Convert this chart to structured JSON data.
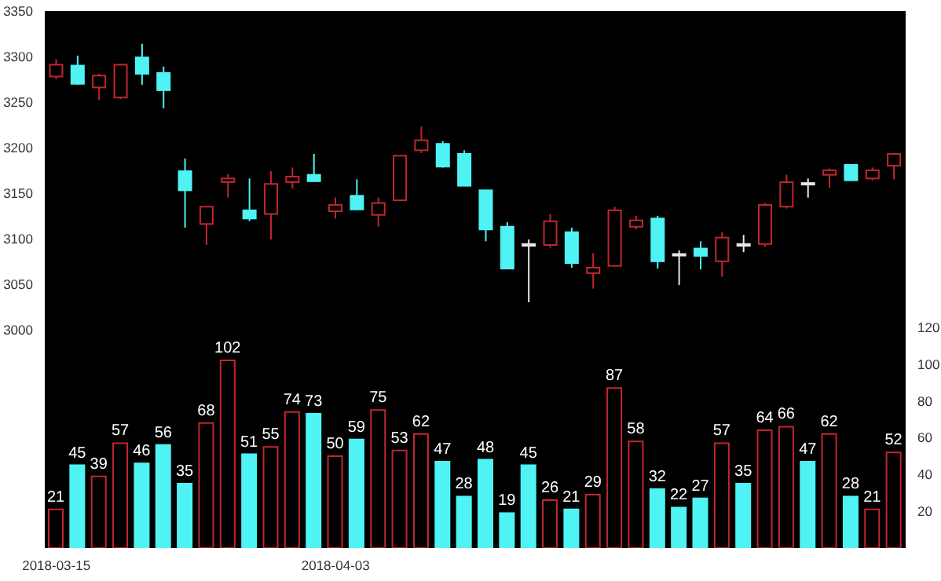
{
  "chart_data": {
    "type": "candlestick",
    "categories": [
      "2018-03-15",
      null,
      null,
      null,
      null,
      null,
      null,
      null,
      null,
      null,
      null,
      null,
      null,
      "2018-04-03",
      null,
      null,
      null,
      null,
      null,
      null,
      null,
      null,
      null,
      null,
      null,
      null,
      null,
      null,
      null,
      null,
      null,
      null,
      null,
      null,
      null,
      null,
      null,
      null,
      null,
      null
    ],
    "ylim": [
      2760,
      3350
    ],
    "yticks": [
      3000,
      3050,
      3100,
      3150,
      3200,
      3250,
      3300,
      3350
    ],
    "y2lim": [
      0,
      292
    ],
    "y2ticks": [
      20,
      40,
      60,
      80,
      100,
      120
    ],
    "data_labels": true,
    "series": [
      {
        "ohlc": [
          [
            3278,
            3297,
            3275,
            3291
          ],
          [
            3290,
            3301,
            3269,
            3270
          ],
          [
            3266,
            3281,
            3252,
            3279
          ],
          [
            3255,
            3292,
            3253,
            3291
          ],
          [
            3299,
            3314,
            3269,
            3281
          ],
          [
            3282,
            3289,
            3243,
            3263
          ],
          [
            3174,
            3188,
            3112,
            3153
          ],
          [
            3116,
            3135,
            3093,
            3135
          ],
          [
            3162,
            3171,
            3145,
            3166
          ],
          [
            3131,
            3166,
            3119,
            3122
          ],
          [
            3127,
            3174,
            3099,
            3160
          ],
          [
            3162,
            3178,
            3155,
            3168
          ],
          [
            3170,
            3193,
            3162,
            3163
          ],
          [
            3130,
            3145,
            3122,
            3137
          ],
          [
            3147,
            3165,
            3131,
            3132
          ],
          [
            3126,
            3145,
            3113,
            3139
          ],
          [
            3142,
            3191,
            3141,
            3191
          ],
          [
            3197,
            3223,
            3194,
            3208
          ],
          [
            3204,
            3207,
            3178,
            3179
          ],
          [
            3193,
            3197,
            3158,
            3158
          ],
          [
            3153,
            3153,
            3097,
            3110
          ],
          [
            3113,
            3118,
            3067,
            3067
          ],
          [
            3094,
            3099,
            3030,
            3092
          ],
          [
            3093,
            3127,
            3090,
            3119
          ],
          [
            3107,
            3112,
            3068,
            3073
          ],
          [
            3062,
            3084,
            3045,
            3068
          ],
          [
            3070,
            3135,
            3070,
            3131
          ],
          [
            3113,
            3125,
            3110,
            3120
          ],
          [
            3122,
            3125,
            3067,
            3075
          ],
          [
            3083,
            3087,
            3049,
            3082
          ],
          [
            3089,
            3097,
            3066,
            3081
          ],
          [
            3075,
            3107,
            3058,
            3101
          ],
          [
            3094,
            3104,
            3085,
            3092
          ],
          [
            3094,
            3139,
            3091,
            3137
          ],
          [
            3135,
            3170,
            3133,
            3162
          ],
          [
            3161,
            3166,
            3145,
            3160
          ],
          [
            3170,
            3177,
            3156,
            3175
          ],
          [
            3181,
            3181,
            3164,
            3164
          ],
          [
            3166,
            3178,
            3164,
            3175
          ],
          [
            3180,
            3194,
            3165,
            3193
          ]
        ],
        "colors": [
          "#c0272d",
          "#4ff3f3",
          "#c0272d",
          "#c0272d",
          "#4ff3f3",
          "#4ff3f3",
          "#4ff3f3",
          "#c0272d",
          "#c0272d",
          "#4ff3f3",
          "#c0272d",
          "#c0272d",
          "#4ff3f3",
          "#c0272d",
          "#4ff3f3",
          "#c0272d",
          "#c0272d",
          "#c0272d",
          "#4ff3f3",
          "#4ff3f3",
          "#4ff3f3",
          "#4ff3f3",
          "#e6e6e6",
          "#c0272d",
          "#4ff3f3",
          "#c0272d",
          "#c0272d",
          "#c0272d",
          "#4ff3f3",
          "#e6e6e6",
          "#4ff3f3",
          "#c0272d",
          "#e6e6e6",
          "#c0272d",
          "#c0272d",
          "#e6e6e6",
          "#c0272d",
          "#4ff3f3",
          "#c0272d",
          "#c0272d"
        ]
      },
      {
        "type": "bar",
        "axis": "y2",
        "values": [
          21,
          45,
          39,
          57,
          46,
          56,
          35,
          68,
          102,
          51,
          55,
          74,
          73,
          50,
          59,
          75,
          53,
          62,
          47,
          28,
          48,
          19,
          45,
          26,
          21,
          29,
          87,
          58,
          32,
          22,
          27,
          57,
          35,
          64,
          66,
          47,
          62,
          28,
          21,
          52
        ],
        "colors": [
          "#c0272d",
          "#4ff3f3",
          "#c0272d",
          "#c0272d",
          "#4ff3f3",
          "#4ff3f3",
          "#4ff3f3",
          "#c0272d",
          "#c0272d",
          "#4ff3f3",
          "#c0272d",
          "#c0272d",
          "#4ff3f3",
          "#c0272d",
          "#4ff3f3",
          "#c0272d",
          "#c0272d",
          "#c0272d",
          "#4ff3f3",
          "#4ff3f3",
          "#4ff3f3",
          "#4ff3f3",
          "#4ff3f3",
          "#c0272d",
          "#4ff3f3",
          "#c0272d",
          "#c0272d",
          "#c0272d",
          "#4ff3f3",
          "#4ff3f3",
          "#4ff3f3",
          "#c0272d",
          "#4ff3f3",
          "#c0272d",
          "#c0272d",
          "#4ff3f3",
          "#c0272d",
          "#4ff3f3",
          "#c0272d",
          "#c0272d"
        ]
      }
    ]
  }
}
